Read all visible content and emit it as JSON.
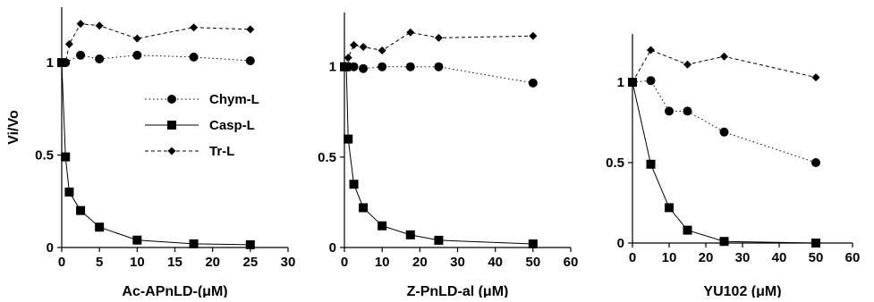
{
  "legend": {
    "items": [
      {
        "label": "Chym-L",
        "marker": "circle",
        "dash": "1.5 3"
      },
      {
        "label": "Casp-L",
        "marker": "square",
        "dash": ""
      },
      {
        "label": "Tr-L",
        "marker": "diamond",
        "dash": "4 3"
      }
    ]
  },
  "chart_data": [
    {
      "type": "line",
      "xlabel": "Ac-APnLD-(μM)",
      "ylabel": "Vi/Vo",
      "xlim": [
        0,
        30
      ],
      "ylim": [
        0,
        1.3
      ],
      "xticks": [
        "0",
        "5",
        "10",
        "15",
        "20",
        "25",
        "30"
      ],
      "yticks": [
        "0",
        "0.5",
        "1"
      ],
      "series": [
        {
          "name": "Chym-L",
          "x": [
            0,
            0.5,
            2.5,
            5,
            10,
            17.5,
            25
          ],
          "y": [
            1.0,
            1.0,
            1.04,
            1.02,
            1.04,
            1.03,
            1.01
          ]
        },
        {
          "name": "Casp-L",
          "x": [
            0,
            0.5,
            1,
            2.5,
            5,
            10,
            17.5,
            25
          ],
          "y": [
            1.0,
            0.49,
            0.3,
            0.2,
            0.11,
            0.04,
            0.02,
            0.015
          ]
        },
        {
          "name": "Tr-L",
          "x": [
            0,
            0.5,
            1,
            2.5,
            5,
            10,
            17.5,
            25
          ],
          "y": [
            1.0,
            1.0,
            1.1,
            1.21,
            1.2,
            1.13,
            1.19,
            1.18
          ]
        }
      ]
    },
    {
      "type": "line",
      "xlabel": "Z-PnLD-al (μM)",
      "ylabel": "",
      "xlim": [
        0,
        60
      ],
      "ylim": [
        0,
        1.3
      ],
      "xticks": [
        "0",
        "10",
        "20",
        "30",
        "40",
        "50",
        "60"
      ],
      "yticks": [
        "0",
        "0.5",
        "1"
      ],
      "series": [
        {
          "name": "Chym-L",
          "x": [
            0,
            1,
            2.5,
            5,
            10,
            17.5,
            25,
            50
          ],
          "y": [
            1.0,
            1.0,
            1.0,
            0.99,
            1.0,
            1.0,
            1.0,
            0.91
          ]
        },
        {
          "name": "Casp-L",
          "x": [
            0,
            0.5,
            1,
            2.5,
            5,
            10,
            17.5,
            25,
            50
          ],
          "y": [
            1.0,
            1.0,
            0.6,
            0.35,
            0.22,
            0.12,
            0.07,
            0.04,
            0.02
          ]
        },
        {
          "name": "Tr-L",
          "x": [
            0,
            1,
            2.5,
            5,
            10,
            17.5,
            25,
            50
          ],
          "y": [
            1.0,
            1.05,
            1.12,
            1.11,
            1.09,
            1.19,
            1.16,
            1.17
          ]
        }
      ]
    },
    {
      "type": "line",
      "xlabel": "YU102 (μM)",
      "ylabel": "",
      "xlim": [
        0,
        60
      ],
      "ylim": [
        0,
        1.3
      ],
      "xticks": [
        "0",
        "10",
        "20",
        "30",
        "40",
        "50",
        "60"
      ],
      "yticks": [
        "0",
        "0.5",
        "1"
      ],
      "series": [
        {
          "name": "Chym-L",
          "x": [
            0,
            5,
            10,
            15,
            25,
            50
          ],
          "y": [
            1.0,
            1.01,
            0.82,
            0.82,
            0.69,
            0.5
          ]
        },
        {
          "name": "Casp-L",
          "x": [
            0,
            5,
            10,
            15,
            25,
            50
          ],
          "y": [
            1.0,
            0.49,
            0.22,
            0.08,
            0.01,
            0.0
          ]
        },
        {
          "name": "Tr-L",
          "x": [
            0,
            5,
            15,
            25,
            50
          ],
          "y": [
            1.0,
            1.2,
            1.11,
            1.16,
            1.03
          ]
        }
      ]
    }
  ]
}
